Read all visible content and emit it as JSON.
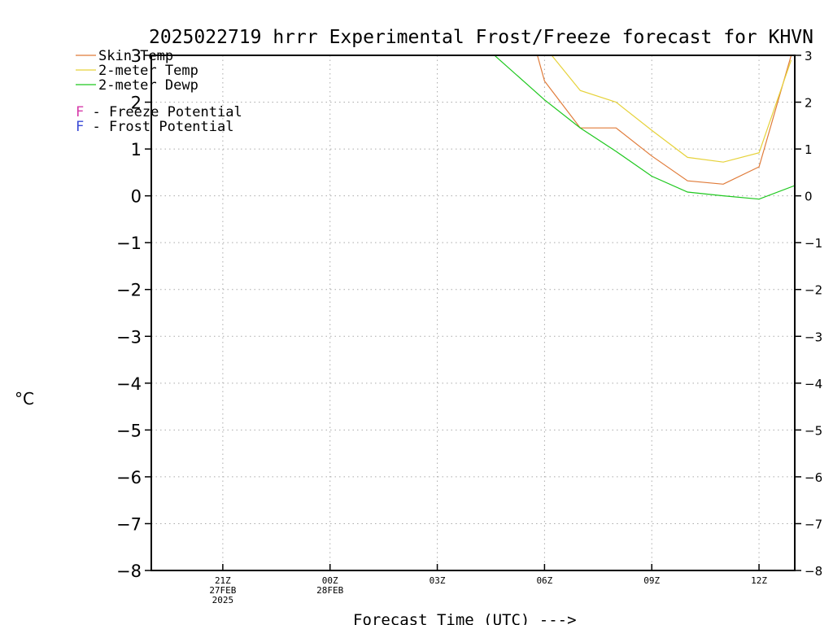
{
  "chart_data": {
    "type": "line",
    "title": "2025022719 hrrr Experimental Frost/Freeze forecast for KHVN",
    "ylabel": "°C",
    "xlabel": "Forecast Time (UTC) --->",
    "ylim": [
      -8,
      3
    ],
    "yticks": [
      3,
      2,
      1,
      0,
      -1,
      -2,
      -3,
      -4,
      -5,
      -6,
      -7,
      -8
    ],
    "xlim": [
      19,
      37
    ],
    "xticks": [
      {
        "x": 21,
        "lines": [
          "21Z",
          "27FEB",
          "2025"
        ]
      },
      {
        "x": 24,
        "lines": [
          "00Z",
          "28FEB"
        ]
      },
      {
        "x": 27,
        "lines": [
          "03Z"
        ]
      },
      {
        "x": 30,
        "lines": [
          "06Z"
        ]
      },
      {
        "x": 33,
        "lines": [
          "09Z"
        ]
      },
      {
        "x": 36,
        "lines": [
          "12Z"
        ]
      }
    ],
    "grid": true,
    "legend_position": "top-left",
    "series": [
      {
        "name": "Skin Temp",
        "color": "#e07b39",
        "points": [
          [
            29.8,
            3.0
          ],
          [
            30.0,
            2.45
          ],
          [
            31.0,
            1.45
          ],
          [
            32.0,
            1.45
          ],
          [
            33.0,
            0.85
          ],
          [
            34.0,
            0.32
          ],
          [
            35.0,
            0.25
          ],
          [
            36.0,
            0.62
          ],
          [
            36.9,
            3.0
          ]
        ]
      },
      {
        "name": "2-meter Temp",
        "color": "#e6d23a",
        "points": [
          [
            30.2,
            3.0
          ],
          [
            31.0,
            2.25
          ],
          [
            32.0,
            2.0
          ],
          [
            33.0,
            1.4
          ],
          [
            34.0,
            0.82
          ],
          [
            35.0,
            0.72
          ],
          [
            36.0,
            0.92
          ],
          [
            36.9,
            2.9
          ]
        ]
      },
      {
        "name": "2-meter Dewp",
        "color": "#1ec81e",
        "points": [
          [
            28.6,
            3.0
          ],
          [
            30.0,
            2.05
          ],
          [
            31.0,
            1.45
          ],
          [
            32.0,
            0.95
          ],
          [
            33.0,
            0.42
          ],
          [
            34.0,
            0.08
          ],
          [
            35.0,
            0.0
          ],
          [
            36.0,
            -0.07
          ],
          [
            37.0,
            0.22
          ]
        ]
      }
    ],
    "potential_legend": [
      {
        "symbol": "F",
        "text": " - Freeze Potential",
        "color": "#d63aa9"
      },
      {
        "symbol": "F",
        "text": " - Frost Potential",
        "color": "#3a4ad6"
      }
    ]
  }
}
